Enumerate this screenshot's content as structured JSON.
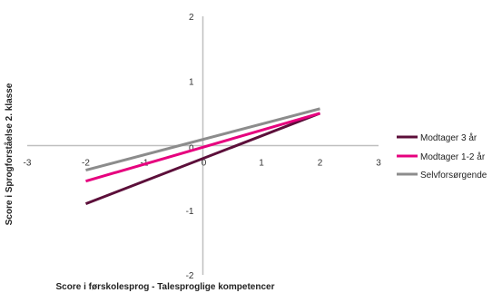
{
  "chart_data": {
    "type": "line",
    "xlabel": "Score i førskolesprog - Talesproglige kompetencer",
    "ylabel": "Score i Sprogforståelse 2. klasse",
    "xlim": [
      -3,
      3
    ],
    "ylim": [
      -2,
      2
    ],
    "x_ticks": [
      "-3",
      "-2",
      "-1",
      "0",
      "1",
      "2",
      "3"
    ],
    "y_ticks": [
      "2",
      "1",
      "0",
      "-1",
      "-2"
    ],
    "grid": false,
    "legend_position": "right",
    "series": [
      {
        "name": "Modtager 3 år",
        "color": "#5c0f3a",
        "x": [
          -2,
          2
        ],
        "y": [
          -0.9,
          0.5
        ]
      },
      {
        "name": "Modtager 1-2 år",
        "color": "#e6007e",
        "x": [
          -2,
          2
        ],
        "y": [
          -0.55,
          0.5
        ]
      },
      {
        "name": "Selvforsørgende",
        "color": "#8c8c8c",
        "x": [
          -2,
          2
        ],
        "y": [
          -0.38,
          0.57
        ]
      }
    ]
  }
}
